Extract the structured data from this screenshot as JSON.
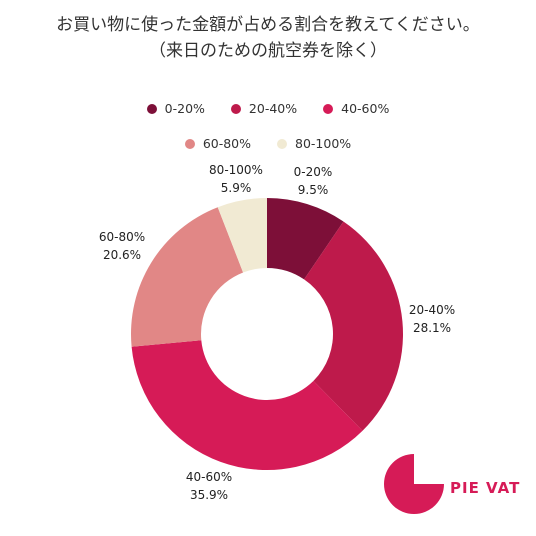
{
  "title_lines": [
    "お買い物に使った金額が占める割合を教えてください。",
    "（来日のための航空券を除く）"
  ],
  "brand": {
    "name": "PIE VAT",
    "color": "#d61b57"
  },
  "chart_data": {
    "type": "pie",
    "variant": "donut",
    "title": "お買い物に使った金額が占める割合を教えてください。（来日のための航空券を除く）",
    "legend_position": "top",
    "slices": [
      {
        "name": "0-20%",
        "value": 9.5,
        "label": "9.5%",
        "color": "#7d0f38"
      },
      {
        "name": "20-40%",
        "value": 28.1,
        "label": "28.1%",
        "color": "#be1a4b"
      },
      {
        "name": "40-60%",
        "value": 35.9,
        "label": "35.9%",
        "color": "#d61b57"
      },
      {
        "name": "60-80%",
        "value": 20.6,
        "label": "20.6%",
        "color": "#e18786"
      },
      {
        "name": "80-100%",
        "value": 5.9,
        "label": "5.9%",
        "color": "#f1ead3"
      }
    ]
  }
}
